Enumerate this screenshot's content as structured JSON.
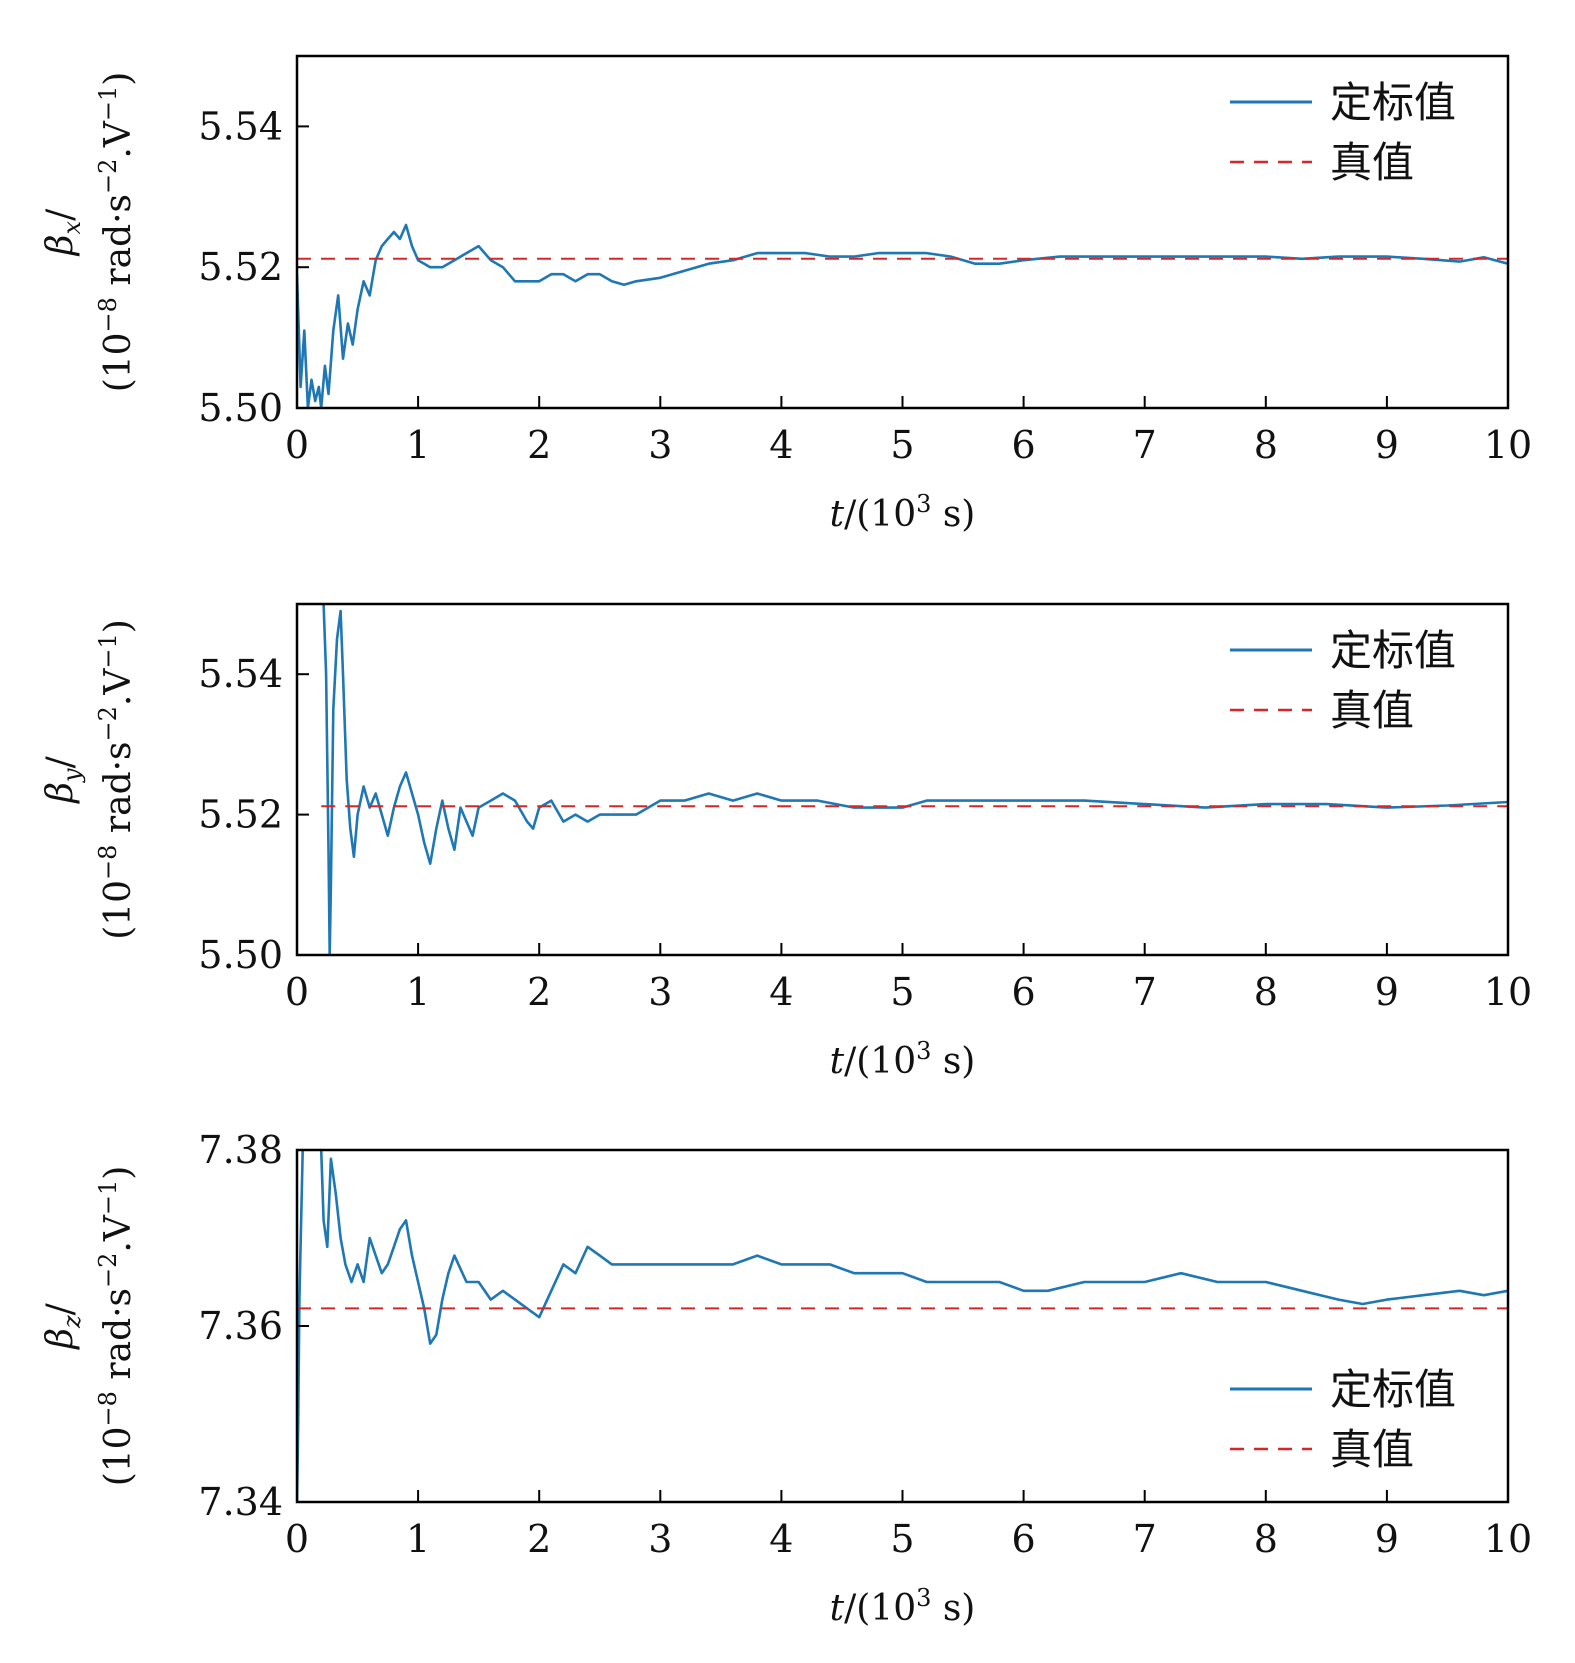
{
  "colors": {
    "calibrated": "#1f77b4",
    "true": "#d62728",
    "axes": "#000000"
  },
  "chart_data": [
    {
      "type": "line",
      "x": [
        0,
        0.03,
        0.06,
        0.09,
        0.12,
        0.15,
        0.18,
        0.2,
        0.23,
        0.26,
        0.3,
        0.34,
        0.38,
        0.42,
        0.46,
        0.5,
        0.55,
        0.6,
        0.65,
        0.7,
        0.75,
        0.8,
        0.85,
        0.9,
        0.95,
        1.0,
        1.1,
        1.2,
        1.3,
        1.4,
        1.5,
        1.6,
        1.7,
        1.8,
        1.9,
        2.0,
        2.1,
        2.2,
        2.3,
        2.4,
        2.5,
        2.6,
        2.7,
        2.8,
        3.0,
        3.2,
        3.4,
        3.6,
        3.8,
        4.0,
        4.2,
        4.4,
        4.6,
        4.8,
        5.0,
        5.2,
        5.4,
        5.6,
        5.8,
        6.0,
        6.3,
        6.6,
        7.0,
        7.3,
        7.6,
        8.0,
        8.3,
        8.6,
        9.0,
        9.3,
        9.6,
        9.8,
        10.0
      ],
      "series": [
        {
          "name": "定标值",
          "values": [
            5.519,
            5.503,
            5.511,
            5.5,
            5.504,
            5.501,
            5.503,
            5.5,
            5.506,
            5.502,
            5.511,
            5.516,
            5.507,
            5.512,
            5.509,
            5.514,
            5.518,
            5.516,
            5.521,
            5.523,
            5.524,
            5.525,
            5.524,
            5.526,
            5.523,
            5.521,
            5.52,
            5.52,
            5.521,
            5.522,
            5.523,
            5.521,
            5.52,
            5.518,
            5.518,
            5.518,
            5.519,
            5.519,
            5.518,
            5.519,
            5.519,
            5.518,
            5.5175,
            5.518,
            5.5185,
            5.5195,
            5.5205,
            5.521,
            5.522,
            5.522,
            5.522,
            5.5215,
            5.5215,
            5.522,
            5.522,
            5.522,
            5.5215,
            5.5205,
            5.5205,
            5.521,
            5.5215,
            5.5215,
            5.5215,
            5.5215,
            5.5215,
            5.5215,
            5.5212,
            5.5215,
            5.5215,
            5.5212,
            5.5208,
            5.5214,
            5.5205
          ]
        },
        {
          "name": "真值",
          "values": [
            5.5212,
            5.5212,
            5.5212,
            5.5212,
            5.5212,
            5.5212,
            5.5212,
            5.5212,
            5.5212,
            5.5212,
            5.5212,
            5.5212,
            5.5212,
            5.5212,
            5.5212,
            5.5212,
            5.5212,
            5.5212,
            5.5212,
            5.5212,
            5.5212,
            5.5212,
            5.5212,
            5.5212,
            5.5212,
            5.5212,
            5.5212,
            5.5212,
            5.5212,
            5.5212,
            5.5212,
            5.5212,
            5.5212,
            5.5212,
            5.5212,
            5.5212,
            5.5212,
            5.5212,
            5.5212,
            5.5212,
            5.5212,
            5.5212,
            5.5212,
            5.5212,
            5.5212,
            5.5212,
            5.5212,
            5.5212,
            5.5212,
            5.5212,
            5.5212,
            5.5212,
            5.5212,
            5.5212,
            5.5212,
            5.5212,
            5.5212,
            5.5212,
            5.5212,
            5.5212,
            5.5212,
            5.5212,
            5.5212,
            5.5212,
            5.5212,
            5.5212,
            5.5212,
            5.5212,
            5.5212,
            5.5212,
            5.5212,
            5.5212,
            5.5212
          ]
        }
      ],
      "xlim": [
        0,
        10
      ],
      "ylim": [
        5.5,
        5.55
      ],
      "xticks": [
        "0",
        "1",
        "2",
        "3",
        "4",
        "5",
        "6",
        "7",
        "8",
        "9",
        "10"
      ],
      "yticks": [
        "5.50",
        "5.52",
        "5.54"
      ],
      "ytick_values": [
        5.5,
        5.52,
        5.54
      ],
      "xlabel_var": "t",
      "xlabel_rest": "/(10",
      "xlabel_exp": "3",
      "xlabel_unit": " s)",
      "ylabel_var": "β",
      "ylabel_sub": "x",
      "ylabel_slash": "/",
      "ylabel_unit_a": "(10",
      "ylabel_unit_exp1": "−8",
      "ylabel_unit_b": " rad·s",
      "ylabel_unit_exp2": "−2",
      "ylabel_unit_c": ".V",
      "ylabel_unit_exp3": "−1",
      "ylabel_unit_d": ")",
      "legend": [
        "定标值",
        "真值"
      ],
      "legend_position": "top-right",
      "grid": false
    },
    {
      "type": "line",
      "x": [
        0.2,
        0.22,
        0.24,
        0.26,
        0.27,
        0.28,
        0.3,
        0.33,
        0.36,
        0.38,
        0.41,
        0.44,
        0.47,
        0.5,
        0.55,
        0.6,
        0.65,
        0.7,
        0.75,
        0.8,
        0.85,
        0.9,
        1.0,
        1.05,
        1.1,
        1.15,
        1.2,
        1.25,
        1.3,
        1.35,
        1.4,
        1.45,
        1.5,
        1.6,
        1.7,
        1.8,
        1.9,
        1.95,
        2.0,
        2.1,
        2.2,
        2.3,
        2.4,
        2.5,
        2.6,
        2.8,
        3.0,
        3.2,
        3.4,
        3.6,
        3.8,
        4.0,
        4.3,
        4.6,
        5.0,
        5.2,
        5.5,
        6.0,
        6.5,
        7.0,
        7.5,
        8.0,
        8.5,
        9.0,
        9.5,
        10.0
      ],
      "series": [
        {
          "name": "定标值",
          "values": [
            5.55,
            5.55,
            5.54,
            5.515,
            5.5,
            5.51,
            5.535,
            5.545,
            5.549,
            5.54,
            5.525,
            5.518,
            5.514,
            5.52,
            5.524,
            5.521,
            5.523,
            5.52,
            5.517,
            5.521,
            5.524,
            5.526,
            5.52,
            5.516,
            5.513,
            5.518,
            5.522,
            5.518,
            5.515,
            5.521,
            5.519,
            5.517,
            5.521,
            5.522,
            5.523,
            5.522,
            5.519,
            5.518,
            5.521,
            5.522,
            5.519,
            5.52,
            5.519,
            5.52,
            5.52,
            5.52,
            5.522,
            5.522,
            5.523,
            5.522,
            5.523,
            5.522,
            5.522,
            5.521,
            5.521,
            5.522,
            5.522,
            5.522,
            5.522,
            5.5215,
            5.521,
            5.5215,
            5.5215,
            5.521,
            5.5213,
            5.5218
          ]
        },
        {
          "name": "真值",
          "values": [
            5.5212,
            5.5212,
            5.5212,
            5.5212,
            5.5212,
            5.5212,
            5.5212,
            5.5212,
            5.5212,
            5.5212,
            5.5212,
            5.5212,
            5.5212,
            5.5212,
            5.5212,
            5.5212,
            5.5212,
            5.5212,
            5.5212,
            5.5212,
            5.5212,
            5.5212,
            5.5212,
            5.5212,
            5.5212,
            5.5212,
            5.5212,
            5.5212,
            5.5212,
            5.5212,
            5.5212,
            5.5212,
            5.5212,
            5.5212,
            5.5212,
            5.5212,
            5.5212,
            5.5212,
            5.5212,
            5.5212,
            5.5212,
            5.5212,
            5.5212,
            5.5212,
            5.5212,
            5.5212,
            5.5212,
            5.5212,
            5.5212,
            5.5212,
            5.5212,
            5.5212,
            5.5212,
            5.5212,
            5.5212,
            5.5212,
            5.5212,
            5.5212,
            5.5212,
            5.5212,
            5.5212,
            5.5212,
            5.5212,
            5.5212,
            5.5212,
            5.5212
          ]
        }
      ],
      "xlim": [
        0,
        10
      ],
      "ylim": [
        5.5,
        5.55
      ],
      "xticks": [
        "0",
        "1",
        "2",
        "3",
        "4",
        "5",
        "6",
        "7",
        "8",
        "9",
        "10"
      ],
      "yticks": [
        "5.50",
        "5.52",
        "5.54"
      ],
      "ytick_values": [
        5.5,
        5.52,
        5.54
      ],
      "xlabel_var": "t",
      "xlabel_rest": "/(10",
      "xlabel_exp": "3",
      "xlabel_unit": " s)",
      "ylabel_var": "β",
      "ylabel_sub": "y",
      "ylabel_slash": "/",
      "ylabel_unit_a": "(10",
      "ylabel_unit_exp1": "−8",
      "ylabel_unit_b": " rad·s",
      "ylabel_unit_exp2": "−2",
      "ylabel_unit_c": ".V",
      "ylabel_unit_exp3": "−1",
      "ylabel_unit_d": ")",
      "legend": [
        "定标值",
        "真值"
      ],
      "legend_position": "top-right",
      "grid": false
    },
    {
      "type": "line",
      "x": [
        0,
        0.01,
        0.02,
        0.05,
        0.1,
        0.15,
        0.2,
        0.22,
        0.25,
        0.28,
        0.32,
        0.36,
        0.4,
        0.45,
        0.5,
        0.55,
        0.6,
        0.65,
        0.7,
        0.75,
        0.8,
        0.85,
        0.9,
        0.95,
        1.0,
        1.05,
        1.1,
        1.15,
        1.2,
        1.25,
        1.3,
        1.4,
        1.5,
        1.6,
        1.7,
        1.8,
        1.9,
        2.0,
        2.1,
        2.2,
        2.3,
        2.4,
        2.5,
        2.6,
        2.8,
        3.0,
        3.2,
        3.4,
        3.6,
        3.8,
        4.0,
        4.2,
        4.4,
        4.6,
        4.8,
        5.0,
        5.2,
        5.4,
        5.6,
        5.8,
        6.0,
        6.2,
        6.5,
        6.8,
        7.0,
        7.3,
        7.6,
        8.0,
        8.3,
        8.6,
        8.8,
        9.0,
        9.3,
        9.6,
        9.8,
        10.0
      ],
      "series": [
        {
          "name": "定标值",
          "values": [
            7.34,
            7.349,
            7.363,
            7.382,
            7.386,
            7.383,
            7.38,
            7.372,
            7.369,
            7.379,
            7.375,
            7.37,
            7.367,
            7.365,
            7.367,
            7.365,
            7.37,
            7.368,
            7.366,
            7.367,
            7.369,
            7.371,
            7.372,
            7.368,
            7.365,
            7.362,
            7.358,
            7.359,
            7.363,
            7.366,
            7.368,
            7.365,
            7.365,
            7.363,
            7.364,
            7.363,
            7.362,
            7.361,
            7.364,
            7.367,
            7.366,
            7.369,
            7.368,
            7.367,
            7.367,
            7.367,
            7.367,
            7.367,
            7.367,
            7.368,
            7.367,
            7.367,
            7.367,
            7.366,
            7.366,
            7.366,
            7.365,
            7.365,
            7.365,
            7.365,
            7.364,
            7.364,
            7.365,
            7.365,
            7.365,
            7.366,
            7.365,
            7.365,
            7.364,
            7.363,
            7.3625,
            7.363,
            7.3635,
            7.364,
            7.3635,
            7.364
          ]
        },
        {
          "name": "真值",
          "values": [
            7.362,
            7.362,
            7.362,
            7.362,
            7.362,
            7.362,
            7.362,
            7.362,
            7.362,
            7.362,
            7.362,
            7.362,
            7.362,
            7.362,
            7.362,
            7.362,
            7.362,
            7.362,
            7.362,
            7.362,
            7.362,
            7.362,
            7.362,
            7.362,
            7.362,
            7.362,
            7.362,
            7.362,
            7.362,
            7.362,
            7.362,
            7.362,
            7.362,
            7.362,
            7.362,
            7.362,
            7.362,
            7.362,
            7.362,
            7.362,
            7.362,
            7.362,
            7.362,
            7.362,
            7.362,
            7.362,
            7.362,
            7.362,
            7.362,
            7.362,
            7.362,
            7.362,
            7.362,
            7.362,
            7.362,
            7.362,
            7.362,
            7.362,
            7.362,
            7.362,
            7.362,
            7.362,
            7.362,
            7.362,
            7.362,
            7.362,
            7.362,
            7.362,
            7.362,
            7.362,
            7.362,
            7.362,
            7.362,
            7.362,
            7.362,
            7.362
          ]
        }
      ],
      "xlim": [
        0,
        10
      ],
      "ylim": [
        7.34,
        7.38
      ],
      "xticks": [
        "0",
        "1",
        "2",
        "3",
        "4",
        "5",
        "6",
        "7",
        "8",
        "9",
        "10"
      ],
      "yticks": [
        "7.34",
        "7.36",
        "7.38"
      ],
      "ytick_values": [
        7.34,
        7.36,
        7.38
      ],
      "xlabel_var": "t",
      "xlabel_rest": "/(10",
      "xlabel_exp": "3",
      "xlabel_unit": " s)",
      "ylabel_var": "β",
      "ylabel_sub": "z",
      "ylabel_slash": "/",
      "ylabel_unit_a": "(10",
      "ylabel_unit_exp1": "−8",
      "ylabel_unit_b": " rad·s",
      "ylabel_unit_exp2": "−2",
      "ylabel_unit_c": ".V",
      "ylabel_unit_exp3": "−1",
      "ylabel_unit_d": ")",
      "legend": [
        "定标值",
        "真值"
      ],
      "legend_position": "lower-right",
      "grid": false
    }
  ]
}
